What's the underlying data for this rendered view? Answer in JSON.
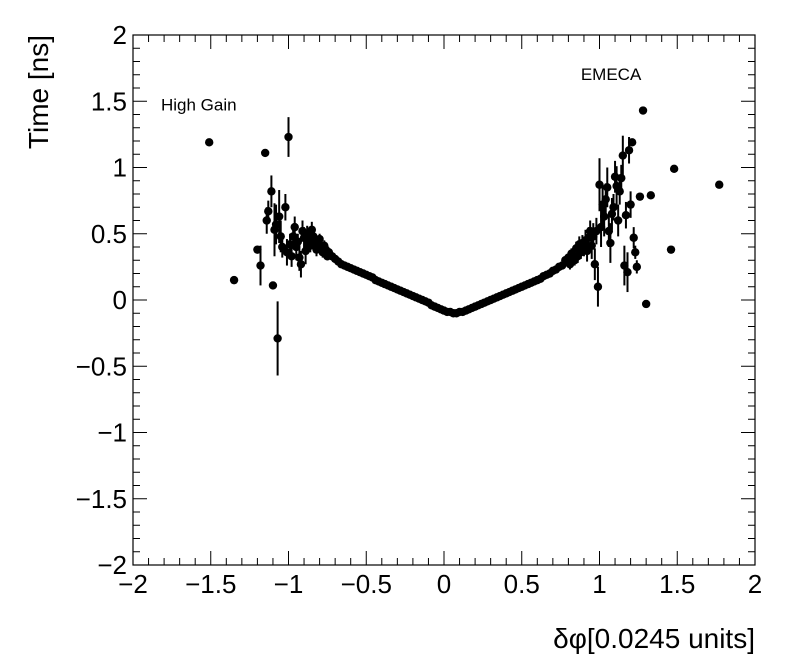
{
  "chart_data": {
    "type": "scatter",
    "title": "",
    "xlabel": "δφ[0.0245 units]",
    "ylabel": "Time [ns]",
    "xlim": [
      -2,
      2
    ],
    "ylim": [
      -2,
      2
    ],
    "x_ticks": [
      -2,
      -1.5,
      -1,
      -0.5,
      0,
      0.5,
      1,
      1.5,
      2
    ],
    "x_tick_labels": [
      "−2",
      "−1.5",
      "−1",
      "−0.5",
      "0",
      "0.5",
      "1",
      "1.5",
      "2"
    ],
    "y_ticks": [
      -2,
      -1.5,
      -1,
      -0.5,
      0,
      0.5,
      1,
      1.5,
      2
    ],
    "y_tick_labels": [
      "−2",
      "−1.5",
      "−1",
      "−0.5",
      "0",
      "0.5",
      "1",
      "1.5",
      "2"
    ],
    "annotations": [
      {
        "text": "High Gain",
        "x": -1.82,
        "y": 1.43
      },
      {
        "text": "EMECA",
        "x": 0.88,
        "y": 1.66
      }
    ],
    "grid": false,
    "series": [
      {
        "name": "data",
        "marker": "circle",
        "color": "#000000",
        "points": [
          [
            -1.51,
            1.19,
            0
          ],
          [
            -1.35,
            0.15,
            0
          ],
          [
            -1.2,
            0.38,
            0
          ],
          [
            -1.18,
            0.26,
            0.15
          ],
          [
            -1.15,
            1.11,
            0
          ],
          [
            -1.14,
            0.6,
            0.1
          ],
          [
            -1.13,
            0.67,
            0.08
          ],
          [
            -1.11,
            0.82,
            0.12
          ],
          [
            -1.1,
            0.11,
            0
          ],
          [
            -1.09,
            0.53,
            0.2
          ],
          [
            -1.08,
            0.57,
            0.15
          ],
          [
            -1.07,
            -0.29,
            0.28
          ],
          [
            -1.06,
            0.63,
            0.2
          ],
          [
            -1.05,
            0.48,
            0.12
          ],
          [
            -1.04,
            0.4,
            0.08
          ],
          [
            -1.02,
            0.7,
            0.1
          ],
          [
            -1.01,
            0.36,
            0.1
          ],
          [
            -1.0,
            1.23,
            0.15
          ],
          [
            -0.99,
            0.42,
            0.08
          ],
          [
            -0.98,
            0.33,
            0.08
          ],
          [
            -0.97,
            0.48,
            0.08
          ],
          [
            -0.96,
            0.55,
            0.08
          ],
          [
            -0.95,
            0.4,
            0.1
          ],
          [
            -0.94,
            0.44,
            0.06
          ],
          [
            -0.93,
            0.32,
            0.1
          ],
          [
            -0.92,
            0.27,
            0.1
          ],
          [
            -0.91,
            0.52,
            0.08
          ],
          [
            -0.9,
            0.47,
            0.08
          ],
          [
            -0.89,
            0.37,
            0.1
          ],
          [
            -0.88,
            0.5,
            0.06
          ],
          [
            -0.87,
            0.44,
            0.05
          ],
          [
            -0.86,
            0.41,
            0.05
          ],
          [
            -0.85,
            0.53,
            0.06
          ],
          [
            -0.84,
            0.48,
            0.05
          ],
          [
            -0.83,
            0.45,
            0.05
          ],
          [
            -0.82,
            0.38,
            0.05
          ],
          [
            -0.81,
            0.43,
            0.04
          ],
          [
            -0.8,
            0.46,
            0.04
          ],
          [
            -0.79,
            0.4,
            0.04
          ],
          [
            -0.78,
            0.36,
            0.04
          ],
          [
            -0.77,
            0.41,
            0.04
          ],
          [
            -0.76,
            0.38,
            0.03
          ],
          [
            -0.75,
            0.33,
            0.03
          ],
          [
            -0.74,
            0.36,
            0.03
          ],
          [
            -0.72,
            0.33,
            0.02
          ],
          [
            -0.7,
            0.31,
            0.02
          ],
          [
            -0.68,
            0.29,
            0.02
          ],
          [
            -0.66,
            0.27,
            0.02
          ],
          [
            -0.64,
            0.26,
            0.01
          ],
          [
            -0.62,
            0.25,
            0.01
          ],
          [
            -0.6,
            0.24,
            0.01
          ],
          [
            -0.58,
            0.23,
            0.01
          ],
          [
            -0.56,
            0.22,
            0.01
          ],
          [
            -0.54,
            0.21,
            0.01
          ],
          [
            -0.52,
            0.2,
            0.01
          ],
          [
            -0.5,
            0.19,
            0.01
          ],
          [
            -0.48,
            0.18,
            0.01
          ],
          [
            -0.46,
            0.17,
            0.01
          ],
          [
            -0.44,
            0.15,
            0.01
          ],
          [
            -0.42,
            0.14,
            0.01
          ],
          [
            -0.4,
            0.13,
            0.01
          ],
          [
            -0.38,
            0.12,
            0.01
          ],
          [
            -0.36,
            0.11,
            0.01
          ],
          [
            -0.34,
            0.1,
            0.01
          ],
          [
            -0.32,
            0.09,
            0.01
          ],
          [
            -0.3,
            0.08,
            0.01
          ],
          [
            -0.28,
            0.07,
            0.01
          ],
          [
            -0.26,
            0.06,
            0.01
          ],
          [
            -0.24,
            0.05,
            0.01
          ],
          [
            -0.22,
            0.04,
            0.01
          ],
          [
            -0.2,
            0.03,
            0.01
          ],
          [
            -0.18,
            0.02,
            0.01
          ],
          [
            -0.16,
            0.01,
            0.01
          ],
          [
            -0.14,
            0.0,
            0.01
          ],
          [
            -0.12,
            -0.01,
            0.01
          ],
          [
            -0.1,
            -0.02,
            0.01
          ],
          [
            -0.08,
            -0.04,
            0.01
          ],
          [
            -0.06,
            -0.05,
            0.01
          ],
          [
            -0.04,
            -0.06,
            0.01
          ],
          [
            -0.02,
            -0.07,
            0.01
          ],
          [
            0.0,
            -0.08,
            0.01
          ],
          [
            0.02,
            -0.09,
            0.01
          ],
          [
            0.04,
            -0.09,
            0.01
          ],
          [
            0.06,
            -0.1,
            0.01
          ],
          [
            0.08,
            -0.1,
            0.01
          ],
          [
            0.1,
            -0.09,
            0.01
          ],
          [
            0.12,
            -0.09,
            0.01
          ],
          [
            0.14,
            -0.08,
            0.01
          ],
          [
            0.16,
            -0.07,
            0.01
          ],
          [
            0.18,
            -0.06,
            0.01
          ],
          [
            0.2,
            -0.05,
            0.01
          ],
          [
            0.22,
            -0.04,
            0.01
          ],
          [
            0.24,
            -0.03,
            0.01
          ],
          [
            0.26,
            -0.02,
            0.01
          ],
          [
            0.28,
            -0.01,
            0.01
          ],
          [
            0.3,
            0.0,
            0.01
          ],
          [
            0.32,
            0.01,
            0.01
          ],
          [
            0.34,
            0.02,
            0.01
          ],
          [
            0.36,
            0.03,
            0.01
          ],
          [
            0.38,
            0.04,
            0.01
          ],
          [
            0.4,
            0.05,
            0.01
          ],
          [
            0.42,
            0.06,
            0.01
          ],
          [
            0.44,
            0.07,
            0.01
          ],
          [
            0.46,
            0.08,
            0.01
          ],
          [
            0.48,
            0.09,
            0.01
          ],
          [
            0.5,
            0.1,
            0.01
          ],
          [
            0.52,
            0.11,
            0.01
          ],
          [
            0.54,
            0.12,
            0.01
          ],
          [
            0.56,
            0.13,
            0.01
          ],
          [
            0.58,
            0.14,
            0.01
          ],
          [
            0.6,
            0.15,
            0.01
          ],
          [
            0.62,
            0.16,
            0.01
          ],
          [
            0.64,
            0.18,
            0.01
          ],
          [
            0.66,
            0.19,
            0.01
          ],
          [
            0.68,
            0.2,
            0.01
          ],
          [
            0.7,
            0.22,
            0.01
          ],
          [
            0.72,
            0.23,
            0.02
          ],
          [
            0.74,
            0.25,
            0.02
          ],
          [
            0.76,
            0.26,
            0.02
          ],
          [
            0.78,
            0.3,
            0.03
          ],
          [
            0.8,
            0.32,
            0.03
          ],
          [
            0.81,
            0.27,
            0.04
          ],
          [
            0.82,
            0.35,
            0.04
          ],
          [
            0.84,
            0.3,
            0.04
          ],
          [
            0.85,
            0.39,
            0.05
          ],
          [
            0.86,
            0.33,
            0.05
          ],
          [
            0.87,
            0.42,
            0.06
          ],
          [
            0.88,
            0.36,
            0.05
          ],
          [
            0.89,
            0.43,
            0.06
          ],
          [
            0.9,
            0.39,
            0.06
          ],
          [
            0.91,
            0.45,
            0.08
          ],
          [
            0.92,
            0.37,
            0.08
          ],
          [
            0.93,
            0.47,
            0.08
          ],
          [
            0.94,
            0.52,
            0.08
          ],
          [
            0.95,
            0.41,
            0.1
          ],
          [
            0.96,
            0.48,
            0.1
          ],
          [
            0.97,
            0.27,
            0.12
          ],
          [
            0.98,
            0.52,
            0.1
          ],
          [
            0.99,
            0.1,
            0.15
          ],
          [
            1.0,
            0.87,
            0.2
          ],
          [
            1.01,
            0.55,
            0.15
          ],
          [
            1.02,
            0.72,
            0.15
          ],
          [
            1.03,
            0.63,
            0.15
          ],
          [
            1.04,
            0.76,
            0.12
          ],
          [
            1.05,
            0.85,
            0.15
          ],
          [
            1.06,
            0.52,
            0.12
          ],
          [
            1.07,
            0.43,
            0.15
          ],
          [
            1.08,
            0.65,
            0.12
          ],
          [
            1.09,
            0.7,
            0.1
          ],
          [
            1.1,
            0.93,
            0.12
          ],
          [
            1.11,
            0.86,
            0.15
          ],
          [
            1.12,
            0.6,
            0.12
          ],
          [
            1.13,
            0.82,
            0.1
          ],
          [
            1.14,
            0.92,
            0.1
          ],
          [
            1.15,
            1.09,
            0.15
          ],
          [
            1.16,
            0.26,
            0.15
          ],
          [
            1.17,
            0.64,
            0.1
          ],
          [
            1.18,
            0.21,
            0.15
          ],
          [
            1.19,
            1.13,
            0.1
          ],
          [
            1.2,
            0.72,
            0.1
          ],
          [
            1.21,
            1.19,
            0
          ],
          [
            1.22,
            0.47,
            0.08
          ],
          [
            1.23,
            0.36,
            0.05
          ],
          [
            1.24,
            0.25,
            0.05
          ],
          [
            1.26,
            0.78,
            0
          ],
          [
            1.28,
            1.43,
            0
          ],
          [
            1.3,
            -0.03,
            0
          ],
          [
            1.33,
            0.79,
            0
          ],
          [
            1.46,
            0.38,
            0
          ],
          [
            1.48,
            0.99,
            0
          ],
          [
            1.77,
            0.87,
            0
          ]
        ]
      }
    ]
  }
}
